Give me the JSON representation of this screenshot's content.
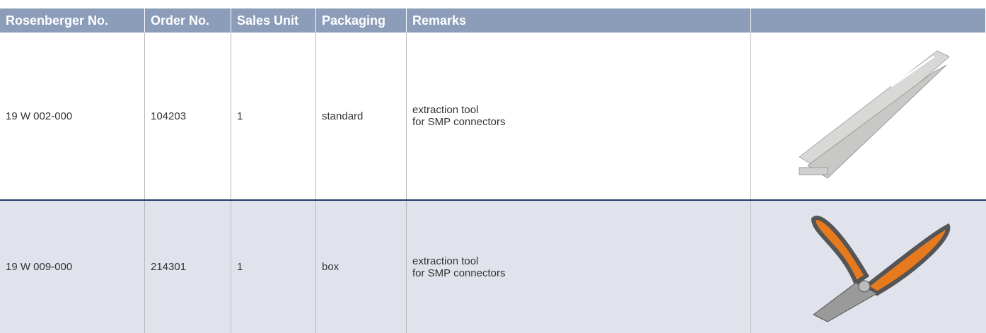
{
  "table": {
    "columns": [
      "Rosenberger No.",
      "Order No.",
      "Sales Unit",
      "Packaging",
      "Remarks",
      ""
    ],
    "rows": [
      [
        "19 W 002-000",
        "104203",
        "1",
        "standard",
        [
          "extraction tool",
          "for SMP connectors"
        ]
      ],
      [
        "19 W 009-000",
        "214301",
        "1",
        "box",
        [
          "extraction tool",
          "for SMP connectors"
        ]
      ]
    ]
  }
}
